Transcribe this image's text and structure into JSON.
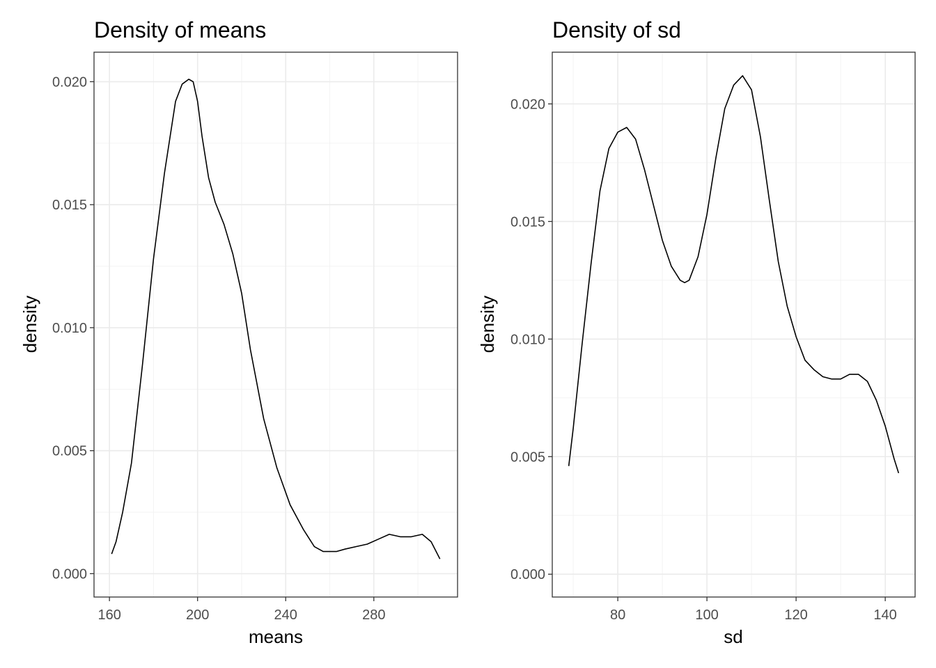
{
  "chart_data": [
    {
      "type": "line",
      "title": "Density of means",
      "xlabel": "means",
      "ylabel": "density",
      "xlim": [
        153,
        318
      ],
      "ylim": [
        -0.00095,
        0.0212
      ],
      "x_ticks": [
        160,
        200,
        240,
        280
      ],
      "x_tick_labels": [
        "160",
        "200",
        "240",
        "280"
      ],
      "y_ticks": [
        0.0,
        0.005,
        0.01,
        0.015,
        0.02
      ],
      "y_tick_labels": [
        "0.000",
        "0.005",
        "0.010",
        "0.015",
        "0.020"
      ],
      "grid": true,
      "series": [
        {
          "x": [
            161,
            163,
            166,
            170,
            175,
            180,
            185,
            190,
            193,
            196,
            198,
            200,
            202,
            205,
            208,
            212,
            216,
            220,
            224,
            230,
            236,
            242,
            248,
            253,
            257,
            260,
            263,
            267,
            272,
            277,
            282,
            287,
            292,
            297,
            302,
            306,
            310
          ],
          "y": [
            0.0008,
            0.0013,
            0.0025,
            0.0045,
            0.0085,
            0.0128,
            0.0163,
            0.0192,
            0.0199,
            0.0201,
            0.02,
            0.0192,
            0.0178,
            0.0161,
            0.0151,
            0.0142,
            0.013,
            0.0114,
            0.0091,
            0.0063,
            0.0043,
            0.0028,
            0.0018,
            0.0011,
            0.0009,
            0.0009,
            0.0009,
            0.001,
            0.0011,
            0.0012,
            0.0014,
            0.0016,
            0.0015,
            0.0015,
            0.0016,
            0.0013,
            0.0006
          ]
        }
      ]
    },
    {
      "type": "line",
      "title": "Density of sd",
      "xlabel": "sd",
      "ylabel": "density",
      "xlim": [
        65.3,
        146.7
      ],
      "ylim": [
        -0.00097,
        0.0222
      ],
      "x_ticks": [
        80,
        100,
        120,
        140
      ],
      "x_tick_labels": [
        "80",
        "100",
        "120",
        "140"
      ],
      "y_ticks": [
        0.0,
        0.005,
        0.01,
        0.015,
        0.02
      ],
      "y_tick_labels": [
        "0.000",
        "0.005",
        "0.010",
        "0.015",
        "0.020"
      ],
      "grid": true,
      "series": [
        {
          "x": [
            69,
            70,
            72,
            74,
            76,
            78,
            80,
            82,
            84,
            86,
            88,
            90,
            92,
            94,
            95,
            96,
            98,
            100,
            102,
            104,
            106,
            108,
            110,
            112,
            114,
            116,
            118,
            120,
            122,
            124,
            126,
            128,
            130,
            132,
            134,
            136,
            138,
            140,
            142,
            143
          ],
          "y": [
            0.0046,
            0.0062,
            0.0098,
            0.0132,
            0.0163,
            0.0181,
            0.0188,
            0.019,
            0.0185,
            0.0172,
            0.0157,
            0.0142,
            0.0131,
            0.0125,
            0.0124,
            0.0125,
            0.0135,
            0.0153,
            0.0177,
            0.0198,
            0.0208,
            0.0212,
            0.0206,
            0.0186,
            0.0159,
            0.0133,
            0.0114,
            0.0101,
            0.0091,
            0.0087,
            0.0084,
            0.0083,
            0.0083,
            0.0085,
            0.0085,
            0.0082,
            0.0074,
            0.0063,
            0.0049,
            0.0043
          ]
        }
      ]
    }
  ]
}
